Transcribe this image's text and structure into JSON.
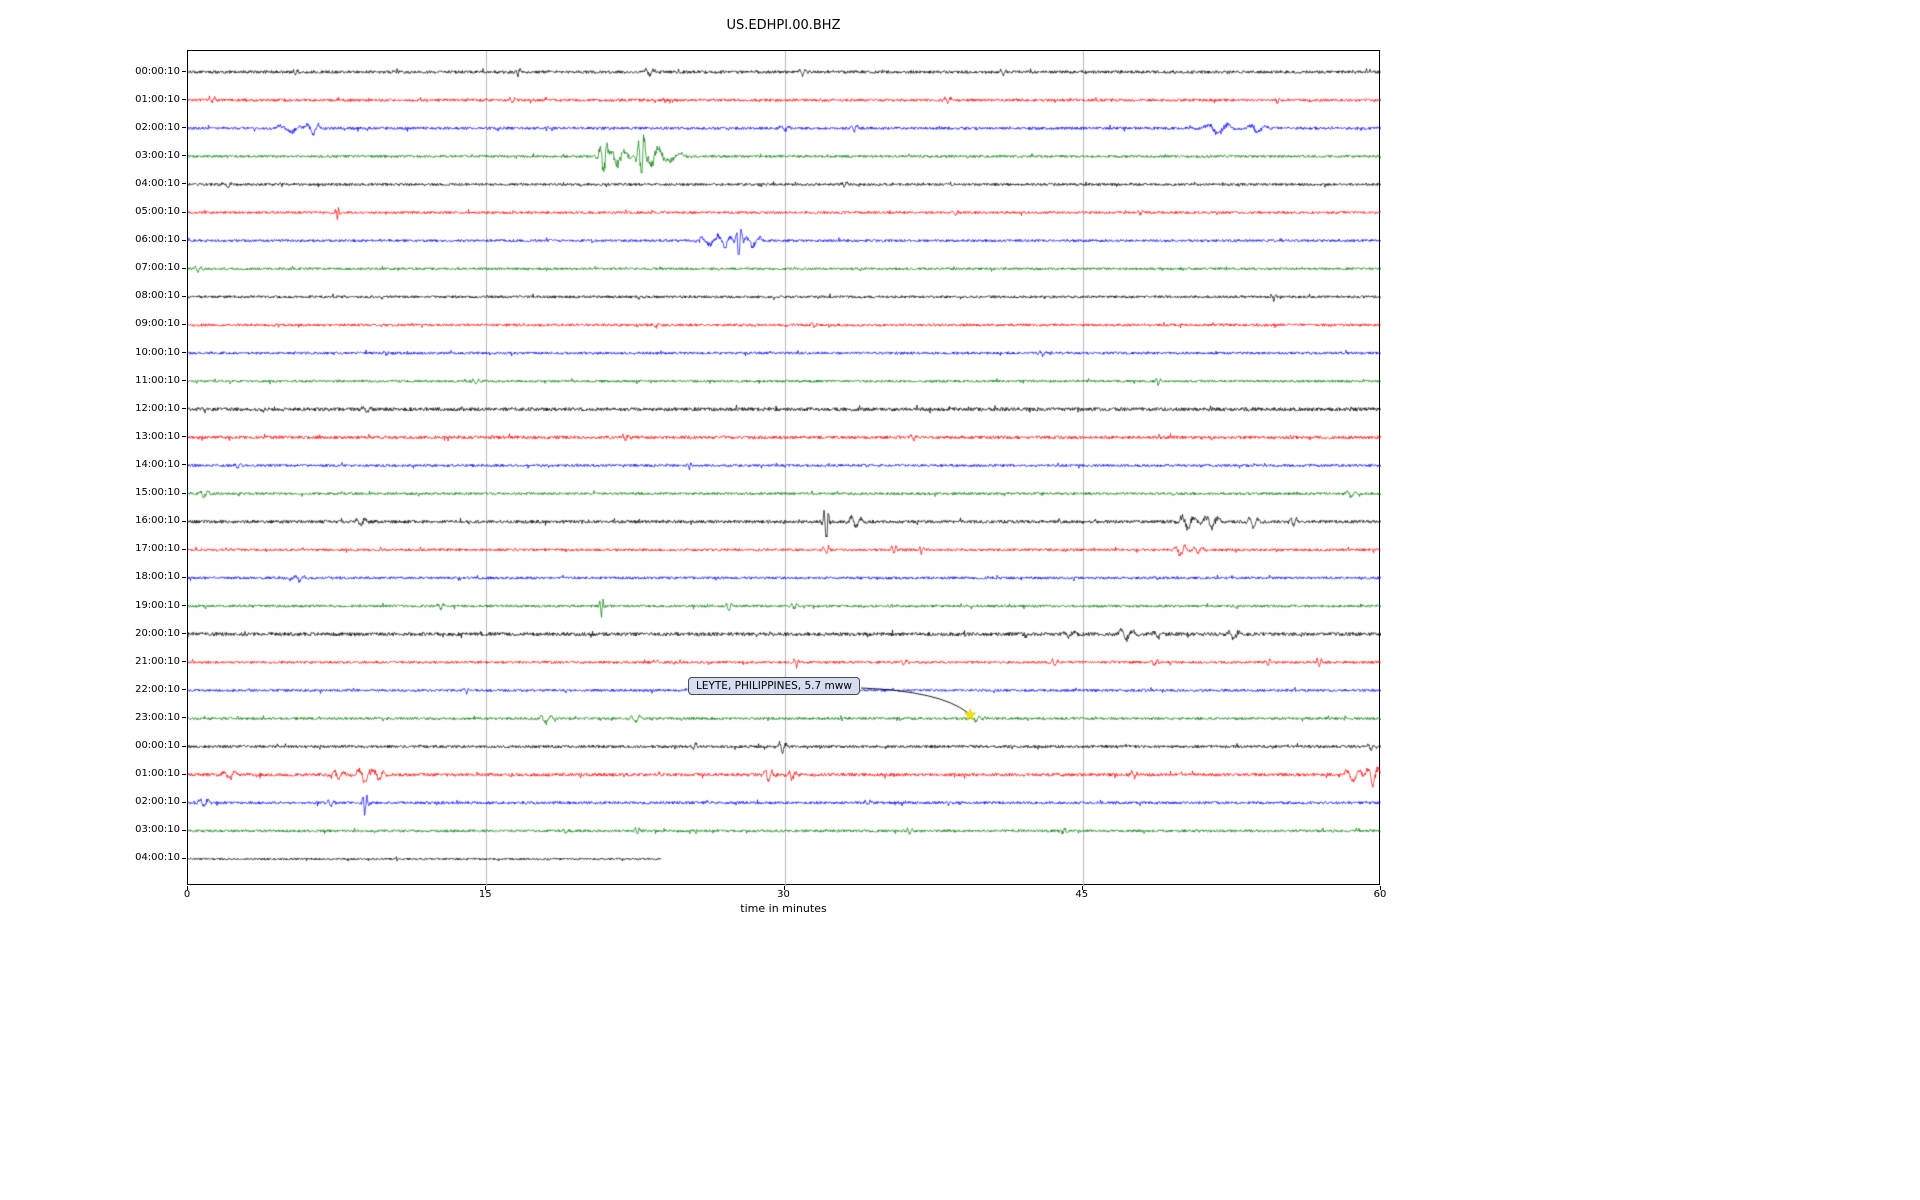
{
  "chart_data": {
    "type": "line",
    "variant": "helicorder-dayplot",
    "title": "US.EDHPI.00.BHZ",
    "xlabel": "time in minutes",
    "xlim": [
      0,
      60
    ],
    "x_ticks": [
      0,
      15,
      30,
      45,
      60
    ],
    "grid": {
      "x": [
        15,
        30,
        45
      ],
      "color": "#b8b8b8"
    },
    "trace_color_cycle": [
      "#000000",
      "#ff0000",
      "#0000ff",
      "#008000"
    ],
    "annotation": {
      "label": "LEYTE, PHILIPPINES, 5.7 mww",
      "marker_glyph": "★",
      "marker_color": "#f2e400",
      "row_index": 23,
      "x_minutes": 39.6,
      "box_fill": "#d5def0"
    },
    "rows": [
      {
        "label": "00:00:10",
        "color": "#000000",
        "noise": 1.5,
        "events": [
          [
            5.4,
            3,
            0.15
          ],
          [
            16.6,
            6,
            0.15
          ],
          [
            23.2,
            4,
            0.3
          ],
          [
            30.9,
            3,
            0.2
          ],
          [
            41.0,
            3.5,
            0.2
          ]
        ]
      },
      {
        "label": "01:00:10",
        "color": "#ff0000",
        "noise": 1.4,
        "events": [
          [
            1.2,
            4,
            0.2
          ],
          [
            16.3,
            3,
            0.2
          ],
          [
            38.2,
            3.5,
            0.2
          ],
          [
            54.8,
            3,
            0.15
          ]
        ]
      },
      {
        "label": "02:00:10",
        "color": "#0000ff",
        "noise": 1.4,
        "events": [
          [
            5.2,
            4,
            0.8
          ],
          [
            6.3,
            6,
            0.4
          ],
          [
            30.0,
            3,
            0.3
          ],
          [
            33.5,
            4,
            0.2
          ],
          [
            51.8,
            6,
            0.7
          ],
          [
            53.8,
            5,
            0.5
          ]
        ]
      },
      {
        "label": "03:00:10",
        "color": "#008000",
        "noise": 1.3,
        "events": [
          [
            20.9,
            20,
            0.25
          ],
          [
            21.6,
            10,
            0.5
          ],
          [
            22.8,
            26,
            0.2
          ],
          [
            23.3,
            10,
            0.5
          ],
          [
            24.2,
            5,
            0.8
          ]
        ]
      },
      {
        "label": "04:00:10",
        "color": "#000000",
        "noise": 1.3,
        "events": [
          [
            2.0,
            2.5,
            0.3
          ],
          [
            33.0,
            2.5,
            0.2
          ]
        ]
      },
      {
        "label": "05:00:10",
        "color": "#ff0000",
        "noise": 1.3,
        "events": [
          [
            7.5,
            9,
            0.12
          ],
          [
            38.6,
            3,
            0.2
          ],
          [
            47.9,
            2.5,
            0.2
          ]
        ]
      },
      {
        "label": "06:00:10",
        "color": "#0000ff",
        "noise": 1.3,
        "events": [
          [
            26.2,
            5,
            0.5
          ],
          [
            27.0,
            7,
            0.4
          ],
          [
            27.7,
            17,
            0.18
          ],
          [
            28.4,
            6,
            0.5
          ]
        ]
      },
      {
        "label": "07:00:10",
        "color": "#008000",
        "noise": 1.2,
        "events": [
          [
            0.5,
            3,
            0.2
          ]
        ]
      },
      {
        "label": "08:00:10",
        "color": "#000000",
        "noise": 1.3,
        "events": [
          [
            54.6,
            4,
            0.15
          ]
        ]
      },
      {
        "label": "09:00:10",
        "color": "#ff0000",
        "noise": 1.3,
        "events": [
          [
            23.5,
            2.5,
            0.2
          ],
          [
            31.5,
            2.5,
            0.2
          ]
        ]
      },
      {
        "label": "10:00:10",
        "color": "#0000ff",
        "noise": 1.3,
        "events": [
          [
            10.0,
            2.5,
            0.2
          ],
          [
            43.0,
            2.5,
            0.2
          ]
        ]
      },
      {
        "label": "11:00:10",
        "color": "#008000",
        "noise": 1.2,
        "events": [
          [
            14.5,
            3,
            0.2
          ],
          [
            48.8,
            4,
            0.15
          ]
        ]
      },
      {
        "label": "12:00:10",
        "color": "#000000",
        "noise": 1.8,
        "events": [
          [
            9.0,
            3,
            0.3
          ]
        ]
      },
      {
        "label": "13:00:10",
        "color": "#ff0000",
        "noise": 1.6,
        "events": [
          [
            22.0,
            3,
            0.2
          ],
          [
            36.5,
            3,
            0.2
          ]
        ]
      },
      {
        "label": "14:00:10",
        "color": "#0000ff",
        "noise": 1.3,
        "events": [
          [
            2.5,
            3,
            0.2
          ],
          [
            25.2,
            4,
            0.15
          ]
        ]
      },
      {
        "label": "15:00:10",
        "color": "#008000",
        "noise": 1.3,
        "events": [
          [
            0.8,
            4,
            0.3
          ],
          [
            58.5,
            4,
            0.3
          ]
        ]
      },
      {
        "label": "16:00:10",
        "color": "#000000",
        "noise": 1.6,
        "events": [
          [
            8.7,
            4,
            0.3
          ],
          [
            32.1,
            21,
            0.15
          ],
          [
            33.6,
            8,
            0.35
          ],
          [
            50.3,
            9,
            0.45
          ],
          [
            51.5,
            7,
            0.45
          ],
          [
            53.6,
            6,
            0.3
          ],
          [
            55.6,
            6,
            0.2
          ]
        ]
      },
      {
        "label": "17:00:10",
        "color": "#ff0000",
        "noise": 1.3,
        "events": [
          [
            32.1,
            5,
            0.2
          ],
          [
            35.5,
            6,
            0.15
          ],
          [
            36.9,
            5,
            0.15
          ],
          [
            49.9,
            7,
            0.35
          ],
          [
            50.8,
            4,
            0.3
          ]
        ]
      },
      {
        "label": "18:00:10",
        "color": "#0000ff",
        "noise": 1.3,
        "events": [
          [
            5.6,
            4,
            0.3
          ]
        ]
      },
      {
        "label": "19:00:10",
        "color": "#008000",
        "noise": 1.3,
        "events": [
          [
            12.7,
            4,
            0.2
          ],
          [
            20.8,
            9,
            0.12
          ],
          [
            27.2,
            4,
            0.2
          ],
          [
            30.5,
            4,
            0.2
          ]
        ]
      },
      {
        "label": "20:00:10",
        "color": "#000000",
        "noise": 1.8,
        "events": [
          [
            44.3,
            5,
            0.4
          ],
          [
            47.2,
            6,
            0.45
          ],
          [
            48.8,
            4,
            0.3
          ],
          [
            52.6,
            5,
            0.4
          ]
        ]
      },
      {
        "label": "21:00:10",
        "color": "#ff0000",
        "noise": 1.3,
        "events": [
          [
            30.6,
            5,
            0.15
          ],
          [
            36.0,
            3,
            0.2
          ],
          [
            43.6,
            4,
            0.2
          ],
          [
            48.6,
            4,
            0.2
          ],
          [
            54.3,
            5,
            0.15
          ],
          [
            56.9,
            5,
            0.15
          ]
        ]
      },
      {
        "label": "22:00:10",
        "color": "#0000ff",
        "noise": 1.3,
        "events": [
          [
            14.0,
            2.5,
            0.2
          ]
        ]
      },
      {
        "label": "23:00:10",
        "color": "#008000",
        "noise": 1.3,
        "events": [
          [
            18.0,
            5,
            0.35
          ],
          [
            22.5,
            5,
            0.3
          ],
          [
            39.6,
            3,
            0.3
          ]
        ]
      },
      {
        "label": "00:00:10",
        "color": "#000000",
        "noise": 1.4,
        "events": [
          [
            25.4,
            4,
            0.2
          ],
          [
            29.9,
            6,
            0.25
          ],
          [
            59.5,
            3.5,
            0.2
          ]
        ]
      },
      {
        "label": "01:00:10",
        "color": "#ff0000",
        "noise": 1.6,
        "events": [
          [
            2.1,
            5,
            0.4
          ],
          [
            7.6,
            6,
            0.35
          ],
          [
            8.9,
            8,
            0.45
          ],
          [
            9.6,
            6,
            0.3
          ],
          [
            29.2,
            7,
            0.25
          ],
          [
            30.4,
            6,
            0.25
          ],
          [
            47.6,
            4,
            0.2
          ],
          [
            58.6,
            7,
            0.5
          ],
          [
            59.6,
            11,
            0.4
          ]
        ]
      },
      {
        "label": "02:00:10",
        "color": "#0000ff",
        "noise": 1.4,
        "events": [
          [
            0.8,
            5,
            0.3
          ],
          [
            7.2,
            4,
            0.2
          ],
          [
            8.9,
            12,
            0.15
          ],
          [
            34.2,
            3,
            0.2
          ]
        ]
      },
      {
        "label": "03:00:10",
        "color": "#008000",
        "noise": 1.3,
        "events": [
          [
            19.0,
            3,
            0.2
          ],
          [
            22.6,
            4,
            0.15
          ],
          [
            36.3,
            5,
            0.15
          ],
          [
            44.0,
            5,
            0.15
          ]
        ]
      },
      {
        "label": "04:00:10",
        "color": "#000000",
        "noise": 1.0,
        "end": 23.8,
        "events": []
      }
    ]
  }
}
